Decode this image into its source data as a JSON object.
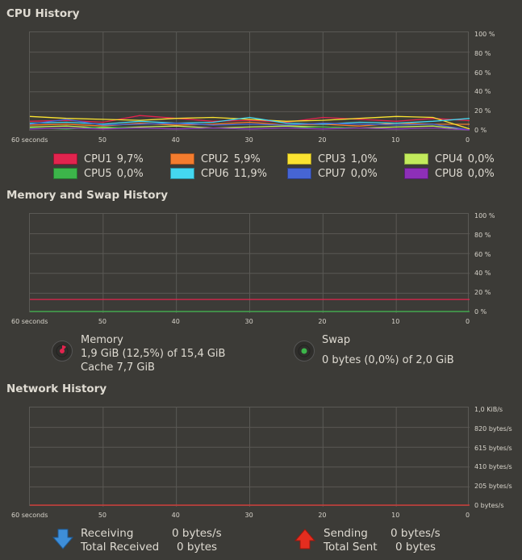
{
  "cpu": {
    "title": "CPU History",
    "y_labels": [
      "100 %",
      "80 %",
      "60 %",
      "40 %",
      "20 %",
      "0 %"
    ],
    "x_labels": [
      "60 seconds",
      "50",
      "40",
      "30",
      "20",
      "10",
      "0"
    ],
    "legend": [
      {
        "name": "CPU1",
        "value": "9,7%",
        "color": "#e2244e"
      },
      {
        "name": "CPU2",
        "value": "5,9%",
        "color": "#f47c2e"
      },
      {
        "name": "CPU3",
        "value": "1,0%",
        "color": "#fbe331"
      },
      {
        "name": "CPU4",
        "value": "0,0%",
        "color": "#c2eb5c"
      },
      {
        "name": "CPU5",
        "value": "0,0%",
        "color": "#3cb54a"
      },
      {
        "name": "CPU6",
        "value": "11,9%",
        "color": "#44d7f0"
      },
      {
        "name": "CPU7",
        "value": "0,0%",
        "color": "#4665d4"
      },
      {
        "name": "CPU8",
        "value": "0,0%",
        "color": "#8d2fb8"
      }
    ]
  },
  "memory": {
    "title": "Memory and Swap History",
    "y_labels": [
      "100 %",
      "80 %",
      "60 %",
      "40 %",
      "20 %",
      "0 %"
    ],
    "x_labels": [
      "60 seconds",
      "50",
      "40",
      "30",
      "20",
      "10",
      "0"
    ],
    "memory_label": "Memory",
    "memory_usage": "1,9 GiB (12,5%) of 15,4 GiB",
    "memory_cache": "Cache 7,7 GiB",
    "memory_color": "#e2244e",
    "swap_label": "Swap",
    "swap_usage": "0 bytes (0,0%) of 2,0 GiB",
    "swap_color": "#3cb54a"
  },
  "network": {
    "title": "Network History",
    "y_labels": [
      "1,0 KiB/s",
      "820 bytes/s",
      "615 bytes/s",
      "410 bytes/s",
      "205 bytes/s",
      "0 bytes/s"
    ],
    "x_labels": [
      "60 seconds",
      "50",
      "40",
      "30",
      "20",
      "10",
      "0"
    ],
    "receiving_label": "Receiving",
    "receiving_value": "0 bytes/s",
    "total_received_label": "Total Received",
    "total_received_value": "0 bytes",
    "sending_label": "Sending",
    "sending_value": "0 bytes/s",
    "total_sent_label": "Total Sent",
    "total_sent_value": "0 bytes",
    "receive_color": "#3e8ed8",
    "send_color": "#e52d1f"
  },
  "chart_data": [
    {
      "type": "line",
      "title": "CPU History",
      "xlabel": "",
      "ylabel": "",
      "x": [
        60,
        55,
        50,
        45,
        40,
        35,
        30,
        25,
        20,
        15,
        10,
        5,
        0
      ],
      "ylim": [
        0,
        100
      ],
      "series": [
        {
          "name": "CPU1",
          "values": [
            9,
            10,
            8,
            15,
            12,
            9,
            10,
            8,
            13,
            11,
            9,
            12,
            9.7
          ]
        },
        {
          "name": "CPU2",
          "values": [
            5,
            6,
            4,
            7,
            5,
            6,
            8,
            5,
            6,
            4,
            7,
            6,
            5.9
          ]
        },
        {
          "name": "CPU3",
          "values": [
            14,
            12,
            11,
            10,
            12,
            13,
            11,
            9,
            10,
            12,
            14,
            13,
            1.0
          ]
        },
        {
          "name": "CPU4",
          "values": [
            3,
            4,
            2,
            3,
            4,
            2,
            3,
            4,
            3,
            2,
            3,
            4,
            0.0
          ]
        },
        {
          "name": "CPU5",
          "values": [
            2,
            1,
            3,
            2,
            1,
            2,
            1,
            2,
            3,
            2,
            1,
            2,
            0.0
          ]
        },
        {
          "name": "CPU6",
          "values": [
            7,
            8,
            6,
            9,
            7,
            8,
            13,
            7,
            6,
            8,
            7,
            9,
            11.9
          ]
        },
        {
          "name": "CPU7",
          "values": [
            6,
            11,
            5,
            6,
            7,
            5,
            6,
            5,
            7,
            6,
            5,
            6,
            0.0
          ]
        },
        {
          "name": "CPU8",
          "values": [
            1,
            2,
            1,
            2,
            1,
            2,
            1,
            2,
            1,
            2,
            1,
            2,
            0.0
          ]
        }
      ]
    },
    {
      "type": "line",
      "title": "Memory and Swap History",
      "xlabel": "",
      "ylabel": "",
      "x": [
        60,
        0
      ],
      "ylim": [
        0,
        100
      ],
      "series": [
        {
          "name": "Memory",
          "values": [
            12.5,
            12.5
          ]
        },
        {
          "name": "Swap",
          "values": [
            0,
            0
          ]
        }
      ]
    },
    {
      "type": "line",
      "title": "Network History",
      "xlabel": "",
      "ylabel": "",
      "x": [
        60,
        0
      ],
      "ylim": [
        0,
        1024
      ],
      "series": [
        {
          "name": "Receiving",
          "values": [
            0,
            0
          ]
        },
        {
          "name": "Sending",
          "values": [
            0,
            0
          ]
        }
      ]
    }
  ]
}
